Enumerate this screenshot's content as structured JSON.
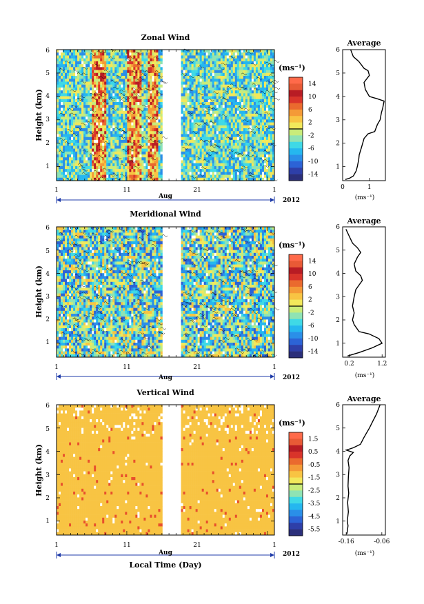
{
  "figure": {
    "xlabel": "Local Time (Day)",
    "month_label": "Aug",
    "year_label": "2012",
    "x_ticks": [
      "1",
      "11",
      "21",
      "1"
    ]
  },
  "chart_data": [
    {
      "type": "heatmap",
      "title": "Zonal Wind",
      "ylabel": "Height (km)",
      "y_ticks": [
        "1",
        "2",
        "3",
        "4",
        "5",
        "6"
      ],
      "ylim": [
        0.4,
        6
      ],
      "x_range_days": [
        1,
        32
      ],
      "data_gap_days": [
        16.2,
        18.6
      ],
      "colorbar": {
        "unit": "(ms⁻¹)",
        "ticks": [
          "14",
          "10",
          "6",
          "2",
          "-2",
          "-6",
          "-10",
          "-14"
        ],
        "range": [
          -16,
          16
        ]
      },
      "profile": {
        "title": "Average",
        "xlabel": "(ms⁻¹)",
        "x_ticks": [
          "0",
          "1"
        ],
        "xlim": [
          0,
          1.6
        ],
        "points": [
          [
            0.1,
            0.45
          ],
          [
            0.25,
            0.5
          ],
          [
            0.4,
            0.6
          ],
          [
            0.5,
            0.8
          ],
          [
            0.55,
            1.0
          ],
          [
            0.6,
            1.3
          ],
          [
            0.62,
            1.5
          ],
          [
            0.7,
            1.8
          ],
          [
            0.75,
            2.0
          ],
          [
            0.8,
            2.2
          ],
          [
            0.95,
            2.4
          ],
          [
            1.2,
            2.5
          ],
          [
            1.3,
            2.8
          ],
          [
            1.4,
            3.0
          ],
          [
            1.45,
            3.3
          ],
          [
            1.5,
            3.5
          ],
          [
            1.55,
            3.8
          ],
          [
            1.3,
            3.9
          ],
          [
            1.0,
            4.0
          ],
          [
            0.85,
            4.3
          ],
          [
            0.8,
            4.6
          ],
          [
            1.0,
            4.9
          ],
          [
            0.95,
            5.1
          ],
          [
            0.8,
            5.2
          ],
          [
            0.6,
            5.5
          ],
          [
            0.4,
            5.7
          ],
          [
            0.3,
            6.0
          ]
        ]
      }
    },
    {
      "type": "heatmap",
      "title": "Meridional Wind",
      "ylabel": "Height (km)",
      "y_ticks": [
        "1",
        "2",
        "3",
        "4",
        "5",
        "6"
      ],
      "ylim": [
        0.4,
        6
      ],
      "x_range_days": [
        1,
        32
      ],
      "data_gap_days": [
        16.2,
        18.6
      ],
      "colorbar": {
        "unit": "(ms⁻¹)",
        "ticks": [
          "14",
          "10",
          "6",
          "2",
          "-2",
          "-6",
          "-10",
          "-14"
        ],
        "range": [
          -16,
          16
        ]
      },
      "profile": {
        "title": "Average",
        "xlabel": "(ms⁻¹)",
        "x_ticks": [
          "0.2",
          "1.2"
        ],
        "xlim": [
          0.0,
          1.3
        ],
        "points": [
          [
            0.15,
            0.45
          ],
          [
            0.5,
            0.6
          ],
          [
            0.9,
            0.8
          ],
          [
            1.2,
            1.0
          ],
          [
            1.1,
            1.2
          ],
          [
            0.8,
            1.4
          ],
          [
            0.5,
            1.5
          ],
          [
            0.35,
            1.8
          ],
          [
            0.3,
            2.0
          ],
          [
            0.35,
            2.3
          ],
          [
            0.3,
            2.6
          ],
          [
            0.35,
            3.0
          ],
          [
            0.4,
            3.3
          ],
          [
            0.5,
            3.5
          ],
          [
            0.6,
            3.7
          ],
          [
            0.55,
            3.9
          ],
          [
            0.4,
            4.1
          ],
          [
            0.35,
            4.4
          ],
          [
            0.45,
            4.7
          ],
          [
            0.55,
            4.9
          ],
          [
            0.45,
            5.1
          ],
          [
            0.3,
            5.3
          ],
          [
            0.2,
            5.6
          ],
          [
            0.1,
            5.9
          ]
        ]
      }
    },
    {
      "type": "heatmap",
      "title": "Vertical Wind",
      "ylabel": "Height (km)",
      "y_ticks": [
        "1",
        "2",
        "3",
        "4",
        "5",
        "6"
      ],
      "ylim": [
        0.4,
        6
      ],
      "x_range_days": [
        1,
        32
      ],
      "data_gap_days": [
        16.2,
        18.6
      ],
      "colorbar": {
        "unit": "(ms⁻¹)",
        "ticks": [
          "1.5",
          "0.5",
          "-0.5",
          "-1.5",
          "-2.5",
          "-3.5",
          "-4.5",
          "-5.5"
        ],
        "range": [
          -6,
          2
        ]
      },
      "profile": {
        "title": "Average",
        "xlabel": "(ms⁻¹)",
        "x_ticks": [
          "-0.16",
          "-0.06"
        ],
        "xlim": [
          -0.17,
          -0.05
        ],
        "points": [
          [
            -0.158,
            0.45
          ],
          [
            -0.155,
            0.8
          ],
          [
            -0.157,
            1.0
          ],
          [
            -0.154,
            1.4
          ],
          [
            -0.156,
            1.8
          ],
          [
            -0.153,
            2.2
          ],
          [
            -0.155,
            2.5
          ],
          [
            -0.154,
            2.9
          ],
          [
            -0.152,
            3.3
          ],
          [
            -0.155,
            3.6
          ],
          [
            -0.15,
            3.8
          ],
          [
            -0.14,
            3.95
          ],
          [
            -0.16,
            4.05
          ],
          [
            -0.14,
            4.15
          ],
          [
            -0.12,
            4.3
          ],
          [
            -0.11,
            4.6
          ],
          [
            -0.095,
            5.0
          ],
          [
            -0.085,
            5.3
          ],
          [
            -0.075,
            5.6
          ],
          [
            -0.065,
            6.0
          ]
        ]
      }
    }
  ]
}
